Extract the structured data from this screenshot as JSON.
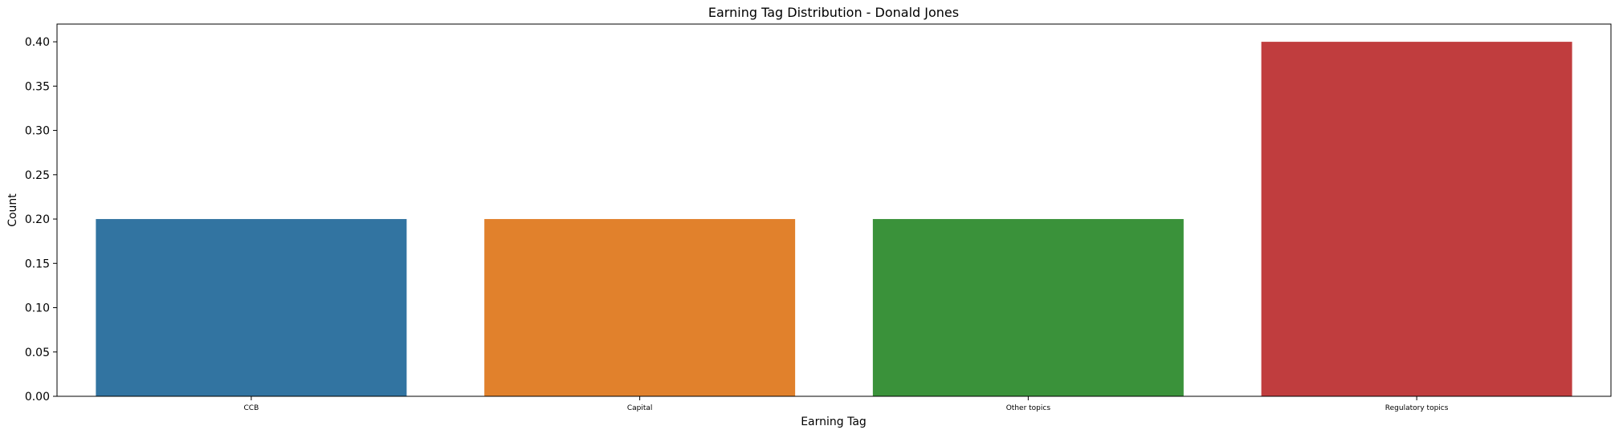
{
  "chart_data": {
    "type": "bar",
    "title": "Earning Tag Distribution - Donald Jones",
    "xlabel": "Earning Tag",
    "ylabel": "Count",
    "categories": [
      "CCB",
      "Capital",
      "Other topics",
      "Regulatory topics"
    ],
    "values": [
      0.2,
      0.2,
      0.2,
      0.4
    ],
    "colors": [
      "#3274a1",
      "#e1812c",
      "#3a923a",
      "#c03d3e"
    ],
    "ylim": [
      0,
      0.42
    ],
    "yticks": [
      "0.00",
      "0.05",
      "0.10",
      "0.15",
      "0.20",
      "0.25",
      "0.30",
      "0.35",
      "0.40"
    ],
    "grid": false,
    "legend": "none"
  }
}
